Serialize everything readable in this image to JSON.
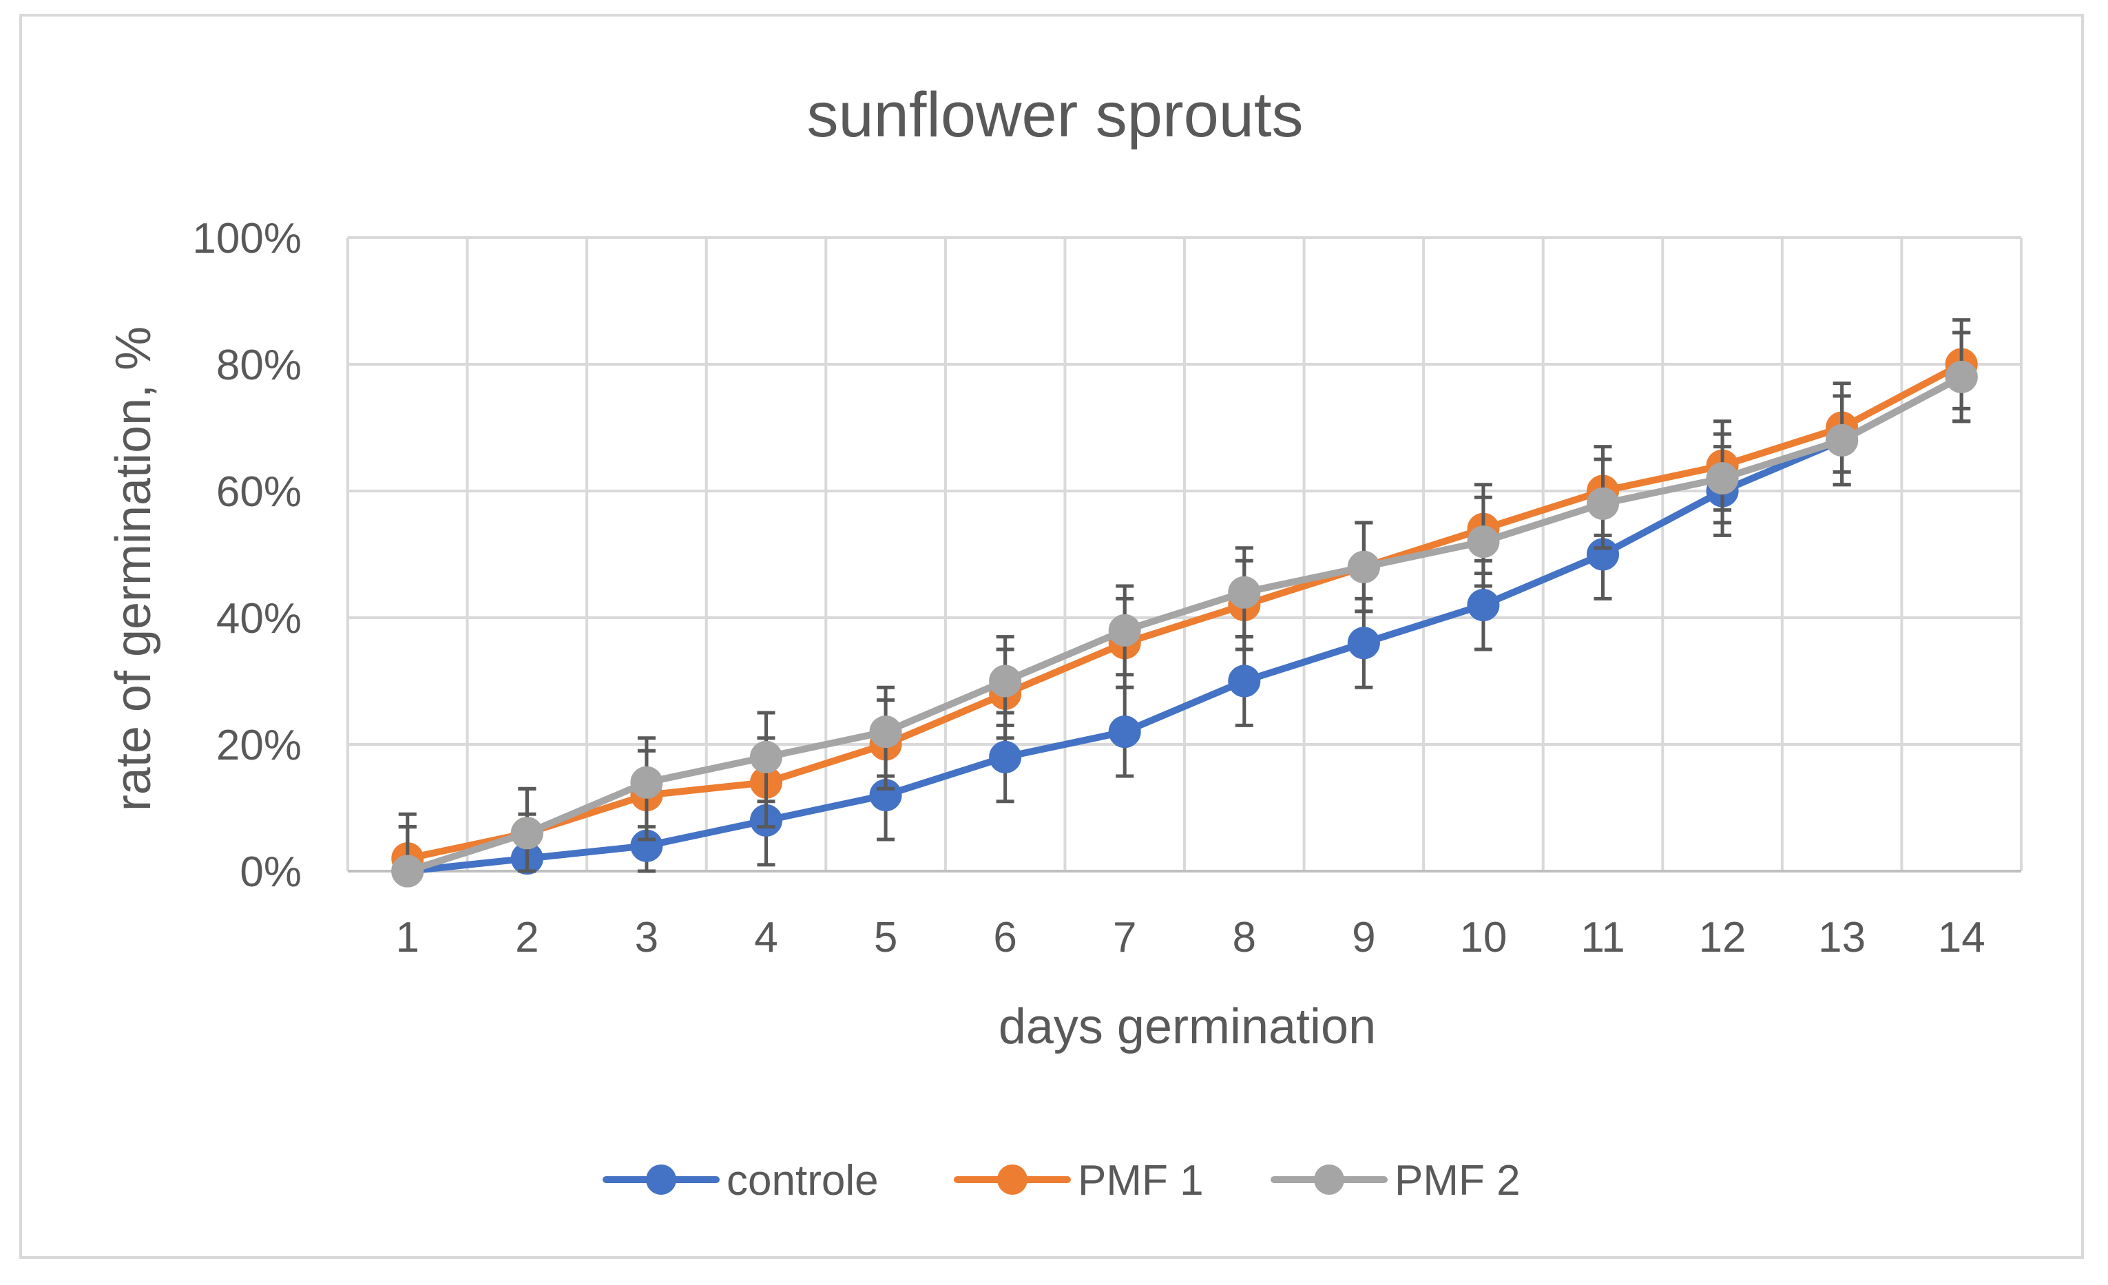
{
  "chart_data": {
    "type": "line",
    "title": "sunflower sprouts",
    "xlabel": "days germination",
    "ylabel": "rate of germination, %",
    "categories": [
      "1",
      "2",
      "3",
      "4",
      "5",
      "6",
      "7",
      "8",
      "9",
      "10",
      "11",
      "12",
      "13",
      "14"
    ],
    "ylim": [
      0,
      100
    ],
    "yticks": [
      0,
      20,
      40,
      60,
      80,
      100
    ],
    "ytick_labels": [
      "0%",
      "20%",
      "40%",
      "60%",
      "80%",
      "100%"
    ],
    "grid": "on",
    "legend_position": "bottom",
    "error_bar": 7,
    "series": [
      {
        "name": "controle",
        "color": "#4472c4",
        "values": [
          0,
          2,
          4,
          8,
          12,
          18,
          22,
          30,
          36,
          42,
          50,
          60,
          68,
          78
        ]
      },
      {
        "name": "PMF 1",
        "color": "#ed7d31",
        "values": [
          2,
          6,
          12,
          14,
          20,
          28,
          36,
          42,
          48,
          54,
          60,
          64,
          70,
          80
        ]
      },
      {
        "name": "PMF 2",
        "color": "#a5a5a5",
        "values": [
          0,
          6,
          14,
          18,
          22,
          30,
          38,
          44,
          48,
          52,
          58,
          62,
          68,
          78
        ]
      }
    ]
  }
}
